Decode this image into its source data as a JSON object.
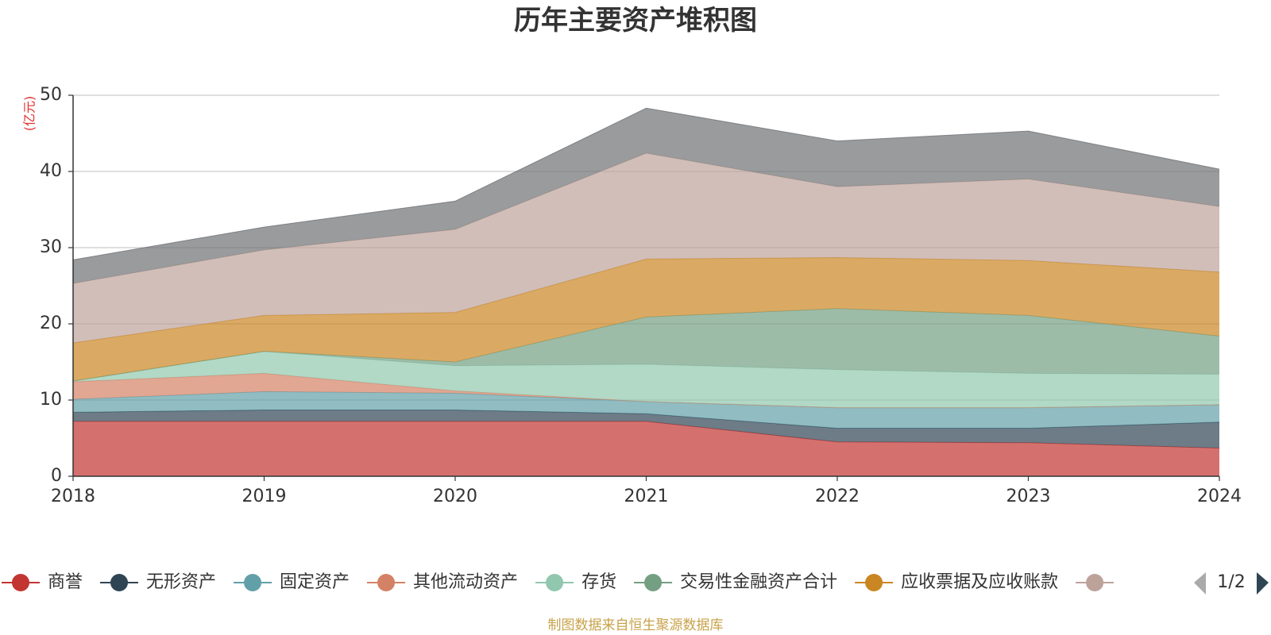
{
  "chart_data": {
    "type": "area",
    "title": "历年主要资产堆积图",
    "ylabel": "(亿元)",
    "ylim": [
      0,
      50
    ],
    "y_ticks": [
      0,
      10,
      20,
      30,
      40,
      50
    ],
    "grid": true,
    "stacked": true,
    "x": [
      "2018",
      "2019",
      "2020",
      "2021",
      "2022",
      "2023",
      "2024"
    ],
    "series": [
      {
        "name": "商誉",
        "color": "#c23531",
        "values": [
          7.2,
          7.2,
          7.2,
          7.2,
          4.5,
          4.4,
          3.7
        ]
      },
      {
        "name": "无形资产",
        "color": "#2f4554",
        "values": [
          1.2,
          1.5,
          1.5,
          1.0,
          1.8,
          1.9,
          3.4
        ]
      },
      {
        "name": "固定资产",
        "color": "#61a0a8",
        "values": [
          1.7,
          2.4,
          2.2,
          1.6,
          2.7,
          2.7,
          2.3
        ]
      },
      {
        "name": "其他流动资产",
        "color": "#d48265",
        "values": [
          2.3,
          2.4,
          0.3,
          0.0,
          0.0,
          0.0,
          0.0
        ]
      },
      {
        "name": "存货",
        "color": "#91c7ae",
        "values": [
          0.1,
          2.9,
          3.3,
          4.9,
          5.0,
          4.5,
          4.0
        ]
      },
      {
        "name": "交易性金融资产合计",
        "color": "#749f83",
        "values": [
          0.0,
          0.0,
          0.5,
          6.2,
          8.0,
          7.6,
          5.0
        ]
      },
      {
        "name": "应收票据及应收账款",
        "color": "#ca8622",
        "values": [
          5.0,
          4.7,
          6.5,
          7.6,
          6.7,
          7.2,
          8.4
        ]
      },
      {
        "name": "",
        "color": "#bda29a",
        "values": [
          7.8,
          8.6,
          10.9,
          13.9,
          9.3,
          10.7,
          8.6
        ]
      },
      {
        "name": "",
        "color": "#6e7074",
        "values": [
          3.1,
          3.0,
          3.7,
          5.9,
          6.0,
          6.3,
          4.9
        ]
      }
    ],
    "legend": {
      "position": "bottom",
      "page": "1/2",
      "visible_count": 8
    }
  },
  "source_note": "制图数据来自恒生聚源数据库"
}
